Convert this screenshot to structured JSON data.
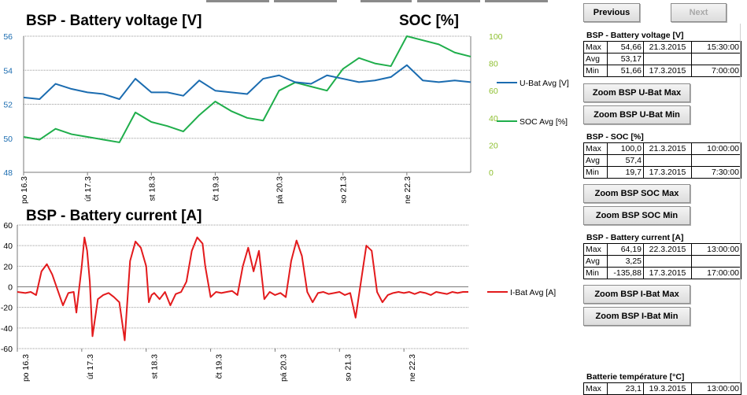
{
  "voltage_chart": {
    "title": "BSP - Battery voltage [V]",
    "right_title": "SOC [%]",
    "x_labels": [
      "po 16.3",
      "út 17.3",
      "st 18.3",
      "čt 19.3",
      "pá 20.3",
      "so 21.3",
      "ne 22.3"
    ],
    "legend": {
      "voltage": "U-Bat Avg [V]",
      "soc": "SOC Avg [%]"
    }
  },
  "current_chart": {
    "title": "BSP - Battery current [A]",
    "x_labels": [
      "po 16.3",
      "út 17.3",
      "st 18.3",
      "čt 19.3",
      "pá 20.3",
      "so 21.3",
      "ne 22.3"
    ],
    "legend": "I-Bat Avg [A]"
  },
  "colors": {
    "voltage": "#1b6cb0",
    "soc": "#1fae4b",
    "current": "#e31a1c",
    "soc_axis": "#8dbf2e",
    "voltage_axis": "#1b6cb0"
  },
  "chart_data": [
    {
      "type": "line",
      "title": "BSP - Battery voltage [V]",
      "x": [
        0,
        6,
        12,
        18,
        24,
        30,
        36,
        42,
        48,
        54,
        60,
        66,
        72,
        78,
        84,
        90,
        96,
        102,
        108,
        114,
        120,
        126,
        132,
        138,
        144,
        150,
        156,
        162,
        168
      ],
      "series": [
        {
          "name": "U-Bat Avg [V]",
          "axis": "left",
          "values": [
            52.4,
            52.3,
            53.2,
            52.9,
            52.7,
            52.6,
            52.3,
            53.5,
            52.7,
            52.7,
            52.5,
            53.4,
            52.8,
            52.7,
            52.6,
            53.5,
            53.7,
            53.3,
            53.2,
            53.7,
            53.5,
            53.3,
            53.4,
            53.6,
            54.3,
            53.4,
            53.3,
            53.4,
            53.3
          ]
        },
        {
          "name": "SOC Avg [%]",
          "axis": "right",
          "values": [
            26,
            24,
            32,
            28,
            26,
            24,
            22,
            44,
            37,
            34,
            30,
            42,
            52,
            45,
            40,
            38,
            60,
            66,
            63,
            60,
            76,
            84,
            80,
            78,
            100,
            97,
            94,
            88,
            85
          ]
        }
      ],
      "x_categories": [
        "po 16.3",
        "út 17.3",
        "st 18.3",
        "čt 19.3",
        "pá 20.3",
        "so 21.3",
        "ne 22.3"
      ],
      "ylim_left": [
        48,
        56
      ],
      "yticks_left": [
        48,
        50,
        52,
        54,
        56
      ],
      "ylim_right": [
        0,
        100
      ],
      "yticks_right": [
        0,
        20,
        40,
        60,
        80,
        100
      ],
      "grid": true,
      "legend": "right"
    },
    {
      "type": "line",
      "title": "BSP - Battery current [A]",
      "x": [
        0,
        3,
        5,
        7,
        9,
        11,
        13,
        15,
        17,
        19,
        21,
        22,
        24,
        25,
        26,
        27,
        28,
        30,
        32,
        34,
        36,
        38,
        40,
        42,
        44,
        46,
        48,
        49,
        50,
        51,
        53,
        55,
        57,
        59,
        61,
        63,
        65,
        67,
        69,
        70,
        72,
        74,
        76,
        78,
        80,
        82,
        84,
        86,
        88,
        90,
        92,
        94,
        96,
        98,
        100,
        102,
        104,
        106,
        108,
        110,
        112,
        114,
        116,
        118,
        120,
        122,
        124,
        126,
        128,
        130,
        132,
        134,
        136,
        138,
        140,
        142,
        144,
        146,
        148,
        150,
        152,
        154,
        156,
        158,
        160,
        162,
        164,
        166,
        168
      ],
      "series": [
        {
          "name": "I-Bat Avg [A]",
          "values": [
            -5,
            -6,
            -5,
            -8,
            15,
            22,
            12,
            -3,
            -18,
            -6,
            -5,
            -25,
            20,
            48,
            35,
            5,
            -48,
            -12,
            -8,
            -6,
            -10,
            -15,
            -52,
            25,
            44,
            38,
            20,
            -15,
            -8,
            -6,
            -12,
            -5,
            -18,
            -7,
            -5,
            5,
            35,
            48,
            42,
            20,
            -10,
            -5,
            -6,
            -5,
            -4,
            -8,
            20,
            38,
            15,
            35,
            -12,
            -5,
            -8,
            -6,
            -10,
            25,
            45,
            30,
            -5,
            -15,
            -6,
            -5,
            -7,
            -6,
            -5,
            -8,
            -6,
            -30,
            5,
            40,
            35,
            -5,
            -15,
            -8,
            -6,
            -5,
            -6,
            -5,
            -7,
            -5,
            -6,
            -8,
            -5,
            -6,
            -7,
            -5,
            -6,
            -5,
            -5
          ]
        }
      ],
      "x_categories": [
        "po 16.3",
        "út 17.3",
        "st 18.3",
        "čt 19.3",
        "pá 20.3",
        "so 21.3",
        "ne 22.3"
      ],
      "ylim": [
        -60,
        60
      ],
      "yticks": [
        -60,
        -40,
        -20,
        0,
        20,
        40,
        60
      ],
      "grid": true,
      "legend": "right"
    }
  ],
  "nav": {
    "previous": "Previous",
    "next": "Next"
  },
  "voltage_stats": {
    "title": "BSP - Battery voltage [V]",
    "rows": [
      {
        "label": "Max",
        "value": "54,66",
        "date": "21.3.2015",
        "time": "15:30:00"
      },
      {
        "label": "Avg",
        "value": "53,17",
        "date": "",
        "time": ""
      },
      {
        "label": "Min",
        "value": "51,66",
        "date": "17.3.2015",
        "time": "7:00:00"
      }
    ],
    "zoom_max": "Zoom BSP U-Bat Max",
    "zoom_min": "Zoom BSP U-Bat Min"
  },
  "soc_stats": {
    "title": "BSP - SOC [%]",
    "rows": [
      {
        "label": "Max",
        "value": "100,0",
        "date": "21.3.2015",
        "time": "10:00:00"
      },
      {
        "label": "Avg",
        "value": "57,4",
        "date": "",
        "time": ""
      },
      {
        "label": "Min",
        "value": "19,7",
        "date": "17.3.2015",
        "time": "7:30:00"
      }
    ],
    "zoom_max": "Zoom BSP SOC Max",
    "zoom_min": "Zoom BSP SOC Min"
  },
  "current_stats": {
    "title": "BSP - Battery current [A]",
    "rows": [
      {
        "label": "Max",
        "value": "64,19",
        "date": "22.3.2015",
        "time": "13:00:00"
      },
      {
        "label": "Avg",
        "value": "3,25",
        "date": "",
        "time": ""
      },
      {
        "label": "Min",
        "value": "-135,88",
        "date": "17.3.2015",
        "time": "17:00:00"
      }
    ],
    "zoom_max": "Zoom BSP I-Bat Max",
    "zoom_min": "Zoom BSP I-Bat Min"
  },
  "temperature_stats": {
    "title": "Batterie température [°C]",
    "rows": [
      {
        "label": "Max",
        "value": "23,1",
        "date": "19.3.2015",
        "time": "13:00:00"
      }
    ]
  }
}
